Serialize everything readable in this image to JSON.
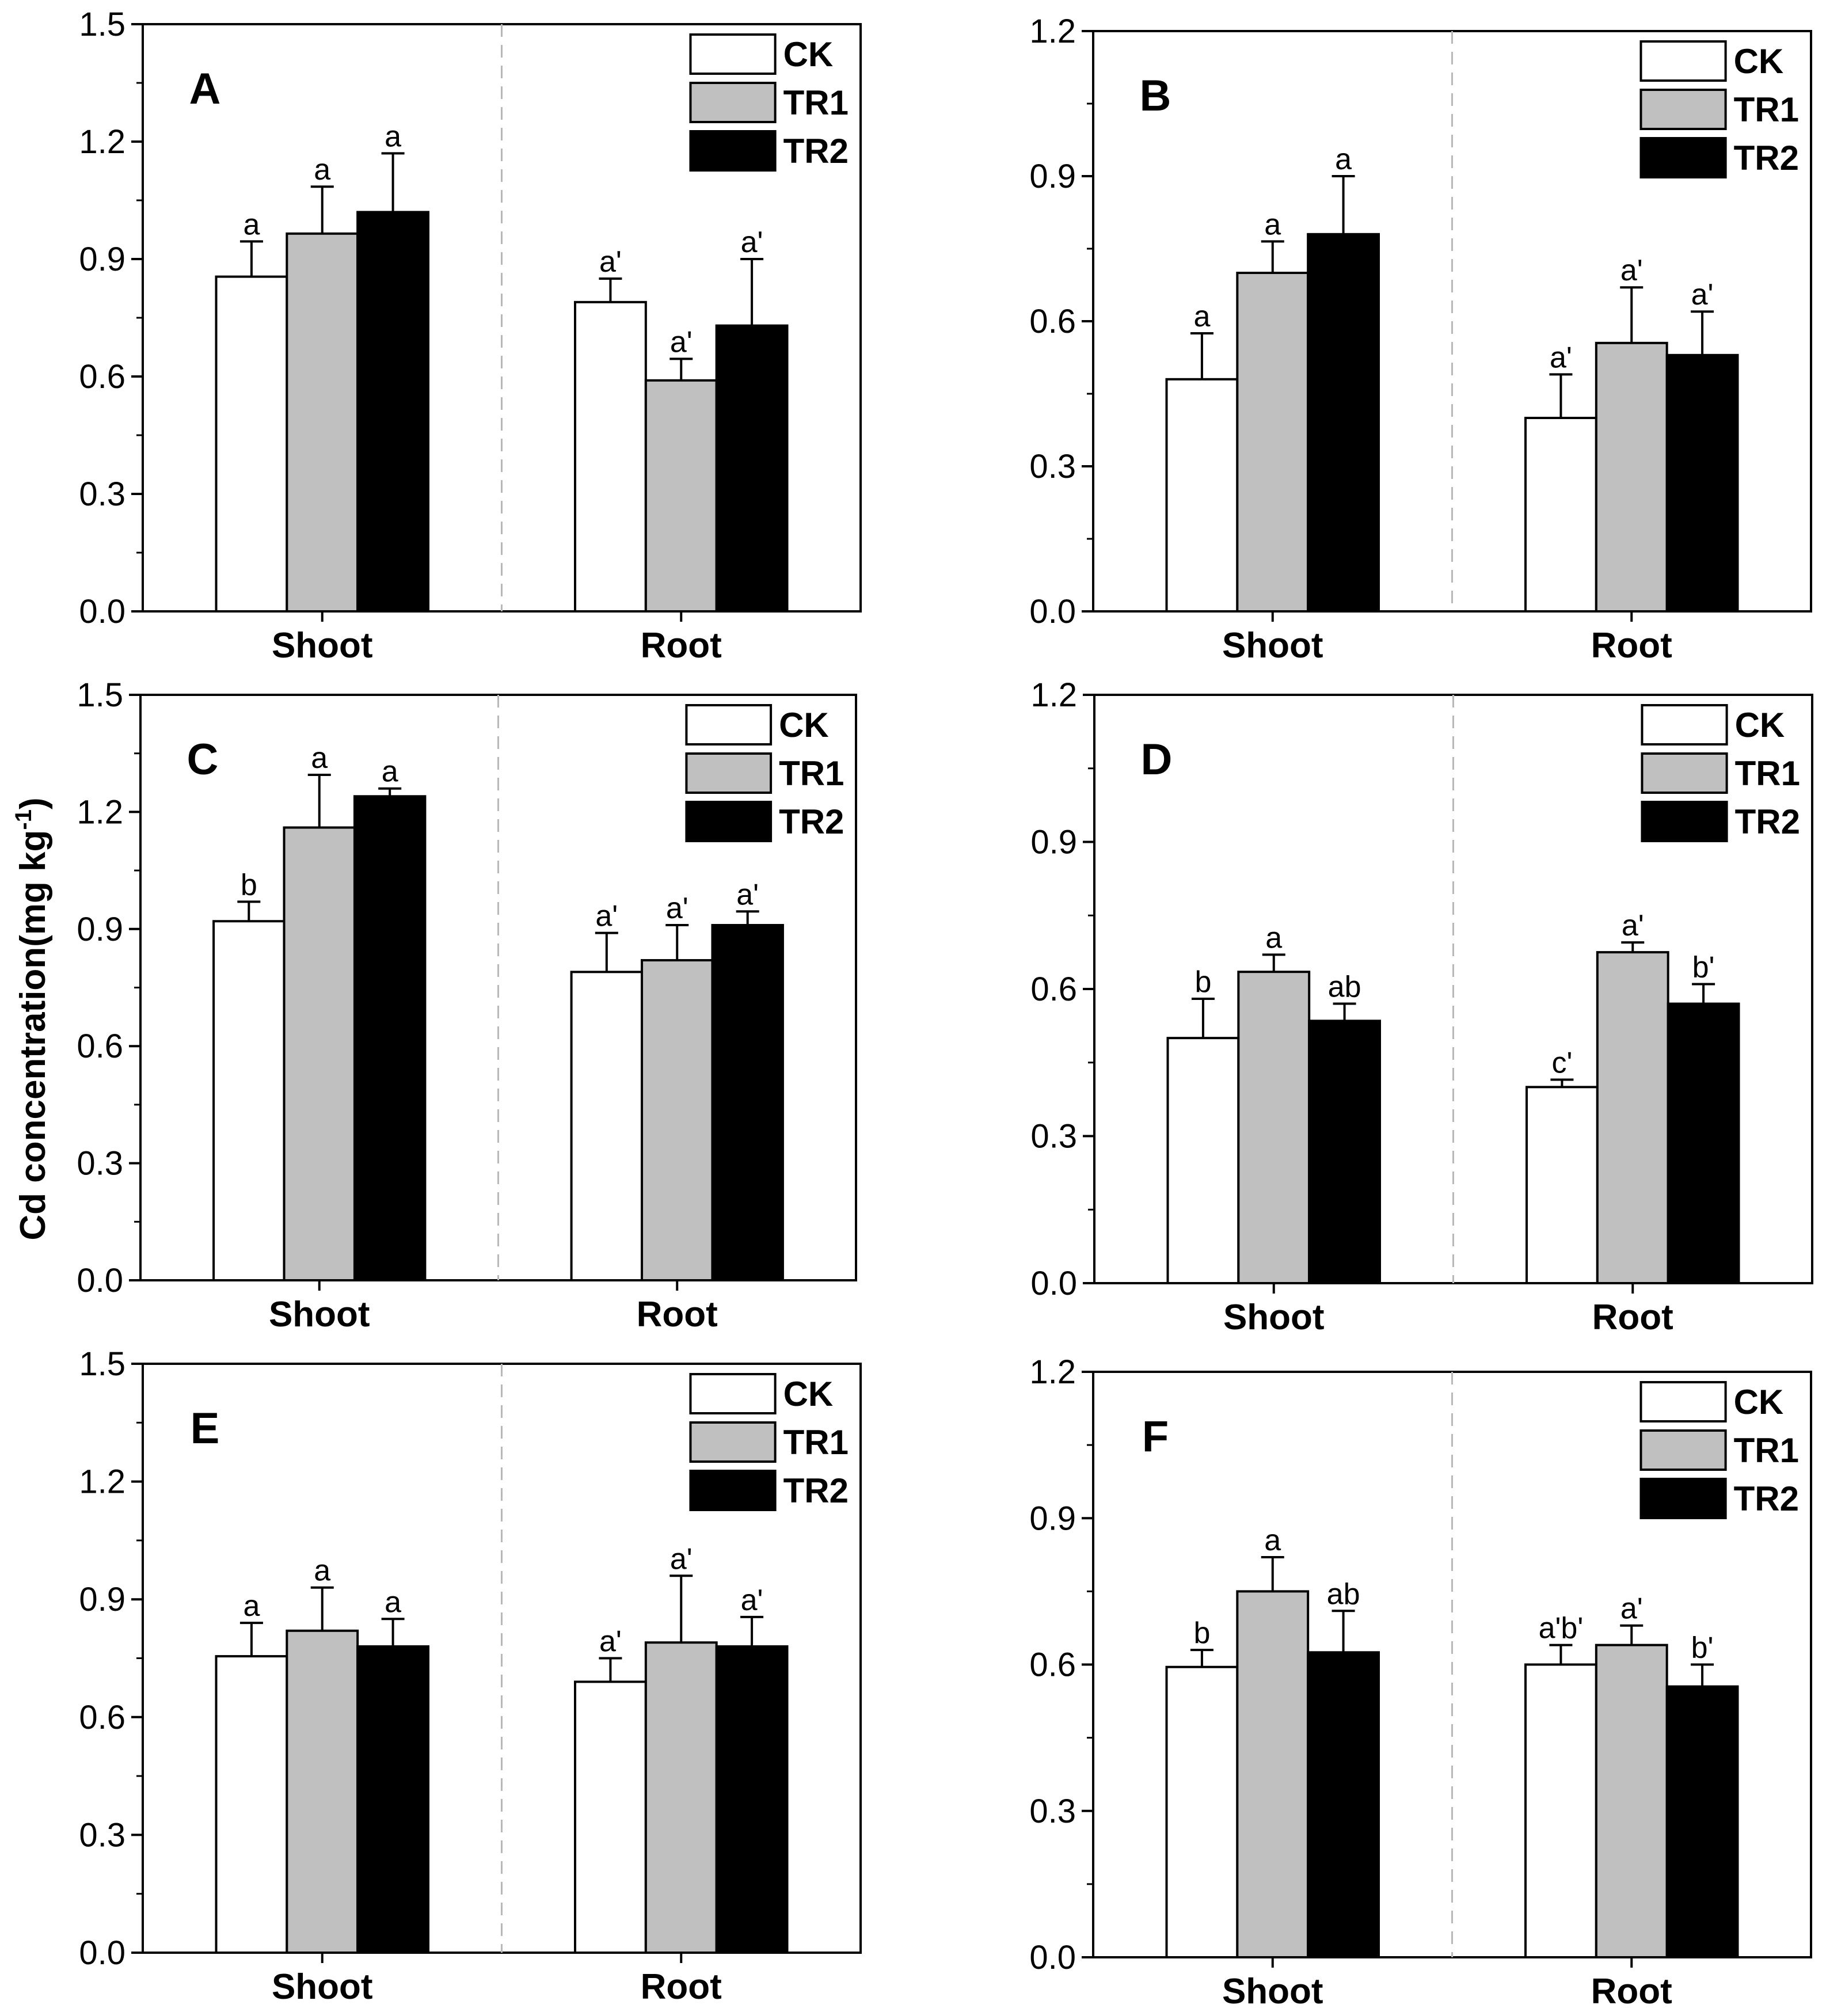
{
  "chart_data": {
    "type": "bar",
    "ylabel": "Cd concentration(mg kg-1)",
    "ylabel_main": "Cd concentration(mg kg",
    "ylabel_sup": "-1",
    "ylabel_close": ")",
    "categories": [
      "Shoot",
      "Root"
    ],
    "series_names": [
      "CK",
      "TR1",
      "TR2"
    ],
    "series_colors": [
      "#ffffff",
      "#c0c0c0",
      "#000000"
    ],
    "panels": [
      {
        "id": "A",
        "ylim": [
          0,
          1.5
        ],
        "yticks": [
          "0.0",
          "0.3",
          "0.6",
          "0.9",
          "1.2",
          "1.5"
        ],
        "series": [
          {
            "name": "CK",
            "values": [
              0.855,
              0.79
            ],
            "errors": [
              0.09,
              0.06
            ],
            "labels": [
              "a",
              "a'"
            ]
          },
          {
            "name": "TR1",
            "values": [
              0.965,
              0.59
            ],
            "errors": [
              0.12,
              0.055
            ],
            "labels": [
              "a",
              "a'"
            ]
          },
          {
            "name": "TR2",
            "values": [
              1.02,
              0.73
            ],
            "errors": [
              0.15,
              0.17
            ],
            "labels": [
              "a",
              "a'"
            ]
          }
        ]
      },
      {
        "id": "B",
        "ylim": [
          0,
          1.2
        ],
        "yticks": [
          "0.0",
          "0.3",
          "0.6",
          "0.9",
          "1.2"
        ],
        "series": [
          {
            "name": "CK",
            "values": [
              0.48,
              0.4
            ],
            "errors": [
              0.095,
              0.09
            ],
            "labels": [
              "a",
              "a'"
            ]
          },
          {
            "name": "TR1",
            "values": [
              0.7,
              0.555
            ],
            "errors": [
              0.065,
              0.115
            ],
            "labels": [
              "a",
              "a'"
            ]
          },
          {
            "name": "TR2",
            "values": [
              0.78,
              0.53
            ],
            "errors": [
              0.12,
              0.09
            ],
            "labels": [
              "a",
              "a'"
            ]
          }
        ]
      },
      {
        "id": "C",
        "ylim": [
          0,
          1.5
        ],
        "yticks": [
          "0.0",
          "0.3",
          "0.6",
          "0.9",
          "1.2",
          "1.5"
        ],
        "series": [
          {
            "name": "CK",
            "values": [
              0.92,
              0.79
            ],
            "errors": [
              0.05,
              0.1
            ],
            "labels": [
              "b",
              "a'"
            ]
          },
          {
            "name": "TR1",
            "values": [
              1.16,
              0.82
            ],
            "errors": [
              0.135,
              0.09
            ],
            "labels": [
              "a",
              "a'"
            ]
          },
          {
            "name": "TR2",
            "values": [
              1.24,
              0.91
            ],
            "errors": [
              0.02,
              0.035
            ],
            "labels": [
              "a",
              "a'"
            ]
          }
        ]
      },
      {
        "id": "D",
        "ylim": [
          0,
          1.2
        ],
        "yticks": [
          "0.0",
          "0.3",
          "0.6",
          "0.9",
          "1.2"
        ],
        "series": [
          {
            "name": "CK",
            "values": [
              0.5,
              0.4
            ],
            "errors": [
              0.08,
              0.015
            ],
            "labels": [
              "b",
              "c'"
            ]
          },
          {
            "name": "TR1",
            "values": [
              0.635,
              0.675
            ],
            "errors": [
              0.035,
              0.02
            ],
            "labels": [
              "a",
              "a'"
            ]
          },
          {
            "name": "TR2",
            "values": [
              0.535,
              0.57
            ],
            "errors": [
              0.035,
              0.04
            ],
            "labels": [
              "ab",
              "b'"
            ]
          }
        ]
      },
      {
        "id": "E",
        "ylim": [
          0,
          1.5
        ],
        "yticks": [
          "0.0",
          "0.3",
          "0.6",
          "0.9",
          "1.2",
          "1.5"
        ],
        "series": [
          {
            "name": "CK",
            "values": [
              0.755,
              0.69
            ],
            "errors": [
              0.085,
              0.06
            ],
            "labels": [
              "a",
              "a'"
            ]
          },
          {
            "name": "TR1",
            "values": [
              0.82,
              0.79
            ],
            "errors": [
              0.11,
              0.17
            ],
            "labels": [
              "a",
              "a'"
            ]
          },
          {
            "name": "TR2",
            "values": [
              0.78,
              0.78
            ],
            "errors": [
              0.07,
              0.075
            ],
            "labels": [
              "a",
              "a'"
            ]
          }
        ]
      },
      {
        "id": "F",
        "ylim": [
          0,
          1.2
        ],
        "yticks": [
          "0.0",
          "0.3",
          "0.6",
          "0.9",
          "1.2"
        ],
        "series": [
          {
            "name": "CK",
            "values": [
              0.595,
              0.6
            ],
            "errors": [
              0.035,
              0.04
            ],
            "labels": [
              "b",
              "a'b'"
            ]
          },
          {
            "name": "TR1",
            "values": [
              0.75,
              0.64
            ],
            "errors": [
              0.07,
              0.04
            ],
            "labels": [
              "a",
              "a'"
            ]
          },
          {
            "name": "TR2",
            "values": [
              0.625,
              0.555
            ],
            "errors": [
              0.085,
              0.045
            ],
            "labels": [
              "ab",
              "b'"
            ]
          }
        ]
      }
    ]
  }
}
